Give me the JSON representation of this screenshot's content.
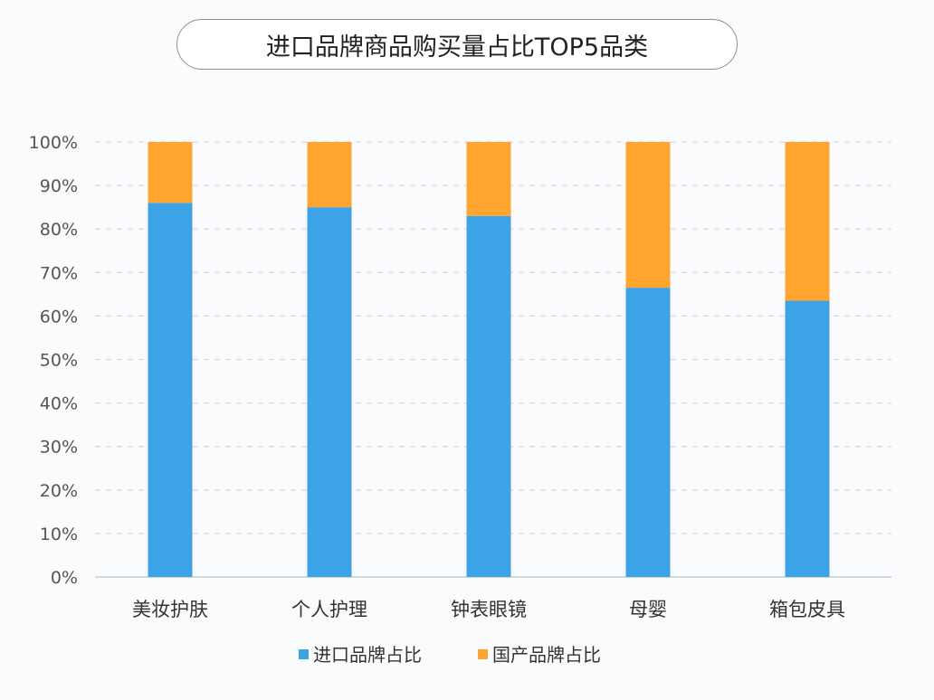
{
  "chart_data": {
    "type": "bar",
    "stacked": true,
    "title": "进口品牌商品购买量占比TOP5品类",
    "categories": [
      "美妆护肤",
      "个人护理",
      "钟表眼镜",
      "母婴",
      "箱包皮具"
    ],
    "series": [
      {
        "name": "进口品牌占比",
        "color": "#3ba3e6",
        "values": [
          86,
          85,
          83,
          66.5,
          63.5
        ]
      },
      {
        "name": "国产品牌占比",
        "color": "#ffa52f",
        "values": [
          14,
          15,
          17,
          33.5,
          36.5
        ]
      }
    ],
    "ylim": [
      0,
      100
    ],
    "yticks": [
      "0%",
      "10%",
      "20%",
      "30%",
      "40%",
      "50%",
      "60%",
      "70%",
      "80%",
      "90%",
      "100%"
    ],
    "grid": true,
    "legend": "bottom"
  }
}
